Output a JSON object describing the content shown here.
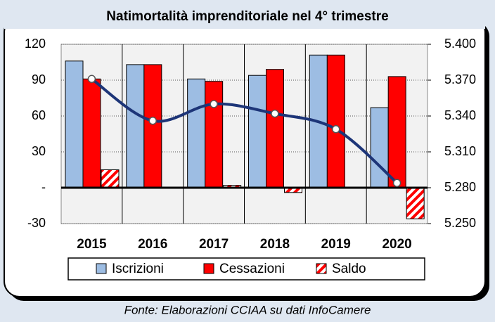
{
  "chart_data": {
    "type": "bar",
    "title": "Natimortalità imprenditoriale nel 4° trimestre",
    "source": "Fonte: Elaborazioni CCIAA su dati InfoCamere",
    "categories": [
      "2015",
      "2016",
      "2017",
      "2018",
      "2019",
      "2020"
    ],
    "series": [
      {
        "name": "Iscrizioni",
        "color": "#9dbde3",
        "values": [
          106,
          103,
          91,
          94,
          111,
          67
        ]
      },
      {
        "name": "Cessazioni",
        "color": "#ff0000",
        "values": [
          91,
          103,
          89,
          99,
          111,
          93
        ]
      },
      {
        "name": "Saldo",
        "color": "#ff0000",
        "values": [
          15,
          0,
          2,
          -4,
          0,
          -26
        ]
      },
      {
        "type": "line",
        "color": "#1d3578",
        "axis": "y2",
        "values": [
          5371,
          5336,
          5350,
          5342,
          5329,
          5284
        ]
      }
    ],
    "ylim": [
      -30,
      120
    ],
    "yticks": [
      -30,
      {
        "value": 0,
        "label": "-"
      },
      30,
      60,
      90,
      120
    ],
    "y2lim": [
      5250,
      5400
    ],
    "y2ticks": [
      {
        "value": 5250,
        "label": "5.250"
      },
      {
        "value": 5280,
        "label": "5.280"
      },
      {
        "value": 5310,
        "label": "5.310"
      },
      {
        "value": 5340,
        "label": "5.340"
      },
      {
        "value": 5370,
        "label": "5.370"
      },
      {
        "value": 5400,
        "label": "5.400"
      }
    ],
    "grid": true
  }
}
